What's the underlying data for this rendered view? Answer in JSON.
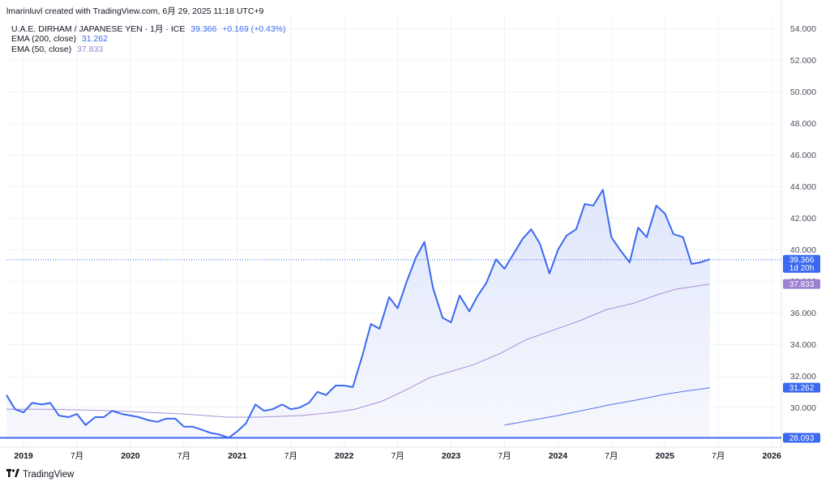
{
  "header": {
    "attribution": "lmarinluvl created with TradingView.com, 6月 29, 2025 11:18 UTC+9",
    "symbol": "U.A.E. DIRHAM / JAPANESE YEN · 1月 · ICE",
    "last_price": "39.366",
    "change": "+0.169 (+0.43%)",
    "ema200_label": "EMA (200, close)",
    "ema200_value": "31.262",
    "ema50_label": "EMA (50, close)",
    "ema50_value": "37.833"
  },
  "branding": {
    "text": "TradingView"
  },
  "colors": {
    "price_line": "#3b69ef",
    "area_top": "#dfe6fb",
    "area_bottom": "#f7f8fd",
    "ema50": "#a98fd8",
    "ema200": "#5572e8",
    "baseline": "#3b69ef",
    "grid": "#f0f3fa",
    "text": "#131722",
    "axis_text": "#4a4f5c"
  },
  "chart_data": {
    "type": "area",
    "y_range": [
      27.5,
      54.9
    ],
    "y_ticks": [
      30,
      32,
      34,
      36,
      38,
      40,
      42,
      44,
      46,
      48,
      50,
      52,
      54
    ],
    "y_tick_labels": [
      "30.000",
      "32.000",
      "34.000",
      "36.000",
      "38.000",
      "40.000",
      "42.000",
      "44.000",
      "46.000",
      "48.000",
      "50.000",
      "52.000",
      "54.000"
    ],
    "x_ticks": [
      {
        "t": 2019.0,
        "label": "2019",
        "bold": true
      },
      {
        "t": 2019.5,
        "label": "7月",
        "bold": false
      },
      {
        "t": 2020.0,
        "label": "2020",
        "bold": true
      },
      {
        "t": 2020.5,
        "label": "7月",
        "bold": false
      },
      {
        "t": 2021.0,
        "label": "2021",
        "bold": true
      },
      {
        "t": 2021.5,
        "label": "7月",
        "bold": false
      },
      {
        "t": 2022.0,
        "label": "2022",
        "bold": true
      },
      {
        "t": 2022.5,
        "label": "7月",
        "bold": false
      },
      {
        "t": 2023.0,
        "label": "2023",
        "bold": true
      },
      {
        "t": 2023.5,
        "label": "7月",
        "bold": false
      },
      {
        "t": 2024.0,
        "label": "2024",
        "bold": true
      },
      {
        "t": 2024.5,
        "label": "7月",
        "bold": false
      },
      {
        "t": 2025.0,
        "label": "2025",
        "bold": true
      },
      {
        "t": 2025.5,
        "label": "7月",
        "bold": false
      },
      {
        "t": 2026.0,
        "label": "2026",
        "bold": true
      }
    ],
    "series": [
      {
        "name": "U.A.E. DIRHAM / JAPANESE YEN",
        "points": [
          [
            2018.84,
            30.8
          ],
          [
            2018.92,
            29.9
          ],
          [
            2019.0,
            29.7
          ],
          [
            2019.08,
            30.3
          ],
          [
            2019.17,
            30.2
          ],
          [
            2019.25,
            30.3
          ],
          [
            2019.33,
            29.5
          ],
          [
            2019.42,
            29.4
          ],
          [
            2019.5,
            29.6
          ],
          [
            2019.58,
            28.9
          ],
          [
            2019.67,
            29.4
          ],
          [
            2019.75,
            29.4
          ],
          [
            2019.83,
            29.8
          ],
          [
            2019.92,
            29.6
          ],
          [
            2020.0,
            29.5
          ],
          [
            2020.08,
            29.4
          ],
          [
            2020.17,
            29.2
          ],
          [
            2020.25,
            29.1
          ],
          [
            2020.33,
            29.3
          ],
          [
            2020.42,
            29.3
          ],
          [
            2020.5,
            28.8
          ],
          [
            2020.58,
            28.8
          ],
          [
            2020.67,
            28.6
          ],
          [
            2020.75,
            28.4
          ],
          [
            2020.83,
            28.3
          ],
          [
            2020.92,
            28.1
          ],
          [
            2021.0,
            28.5
          ],
          [
            2021.08,
            29.0
          ],
          [
            2021.17,
            30.2
          ],
          [
            2021.25,
            29.8
          ],
          [
            2021.33,
            29.9
          ],
          [
            2021.42,
            30.2
          ],
          [
            2021.5,
            29.9
          ],
          [
            2021.58,
            30.0
          ],
          [
            2021.67,
            30.3
          ],
          [
            2021.75,
            31.0
          ],
          [
            2021.83,
            30.8
          ],
          [
            2021.92,
            31.4
          ],
          [
            2022.0,
            31.4
          ],
          [
            2022.08,
            31.3
          ],
          [
            2022.17,
            33.3
          ],
          [
            2022.25,
            35.3
          ],
          [
            2022.33,
            35.0
          ],
          [
            2022.42,
            37.0
          ],
          [
            2022.5,
            36.3
          ],
          [
            2022.58,
            37.9
          ],
          [
            2022.67,
            39.5
          ],
          [
            2022.75,
            40.5
          ],
          [
            2022.83,
            37.6
          ],
          [
            2022.92,
            35.7
          ],
          [
            2023.0,
            35.4
          ],
          [
            2023.08,
            37.1
          ],
          [
            2023.17,
            36.1
          ],
          [
            2023.25,
            37.1
          ],
          [
            2023.33,
            37.9
          ],
          [
            2023.42,
            39.4
          ],
          [
            2023.5,
            38.8
          ],
          [
            2023.58,
            39.7
          ],
          [
            2023.67,
            40.7
          ],
          [
            2023.75,
            41.3
          ],
          [
            2023.83,
            40.4
          ],
          [
            2023.92,
            38.5
          ],
          [
            2024.0,
            40.0
          ],
          [
            2024.08,
            40.9
          ],
          [
            2024.17,
            41.3
          ],
          [
            2024.25,
            42.9
          ],
          [
            2024.33,
            42.8
          ],
          [
            2024.42,
            43.8
          ],
          [
            2024.5,
            40.8
          ],
          [
            2024.58,
            40.0
          ],
          [
            2024.67,
            39.2
          ],
          [
            2024.75,
            41.4
          ],
          [
            2024.83,
            40.8
          ],
          [
            2024.92,
            42.8
          ],
          [
            2025.0,
            42.3
          ],
          [
            2025.08,
            41.0
          ],
          [
            2025.17,
            40.8
          ],
          [
            2025.25,
            39.1
          ],
          [
            2025.33,
            39.2
          ],
          [
            2025.42,
            39.4
          ]
        ]
      },
      {
        "name": "EMA (50, close)",
        "points": [
          [
            2018.84,
            29.9
          ],
          [
            2019.2,
            29.9
          ],
          [
            2019.6,
            29.85
          ],
          [
            2020.0,
            29.75
          ],
          [
            2020.5,
            29.6
          ],
          [
            2020.9,
            29.4
          ],
          [
            2021.2,
            29.4
          ],
          [
            2021.6,
            29.5
          ],
          [
            2021.9,
            29.7
          ],
          [
            2022.1,
            29.9
          ],
          [
            2022.35,
            30.4
          ],
          [
            2022.6,
            31.2
          ],
          [
            2022.8,
            31.9
          ],
          [
            2023.0,
            32.3
          ],
          [
            2023.2,
            32.7
          ],
          [
            2023.45,
            33.4
          ],
          [
            2023.7,
            34.3
          ],
          [
            2023.95,
            34.9
          ],
          [
            2024.2,
            35.5
          ],
          [
            2024.45,
            36.2
          ],
          [
            2024.7,
            36.6
          ],
          [
            2024.95,
            37.2
          ],
          [
            2025.1,
            37.5
          ],
          [
            2025.42,
            37.83
          ]
        ]
      },
      {
        "name": "EMA (200, close)",
        "points": [
          [
            2023.5,
            28.9
          ],
          [
            2023.75,
            29.2
          ],
          [
            2024.0,
            29.5
          ],
          [
            2024.25,
            29.85
          ],
          [
            2024.5,
            30.2
          ],
          [
            2024.75,
            30.5
          ],
          [
            2025.0,
            30.85
          ],
          [
            2025.2,
            31.05
          ],
          [
            2025.42,
            31.262
          ]
        ]
      }
    ],
    "baseline_value": 28.093,
    "last_value": 39.366,
    "price_labels": [
      {
        "value": 39.366,
        "text": "39.366",
        "sub": "1d 20h",
        "color": "#3b69ef"
      },
      {
        "value": 37.833,
        "text": "37.833",
        "sub": "",
        "color": "#9b7fd1"
      },
      {
        "value": 31.262,
        "text": "31.262",
        "sub": "",
        "color": "#3b69ef"
      },
      {
        "value": 28.093,
        "text": "28.093",
        "sub": "",
        "color": "#3b69ef"
      }
    ]
  }
}
